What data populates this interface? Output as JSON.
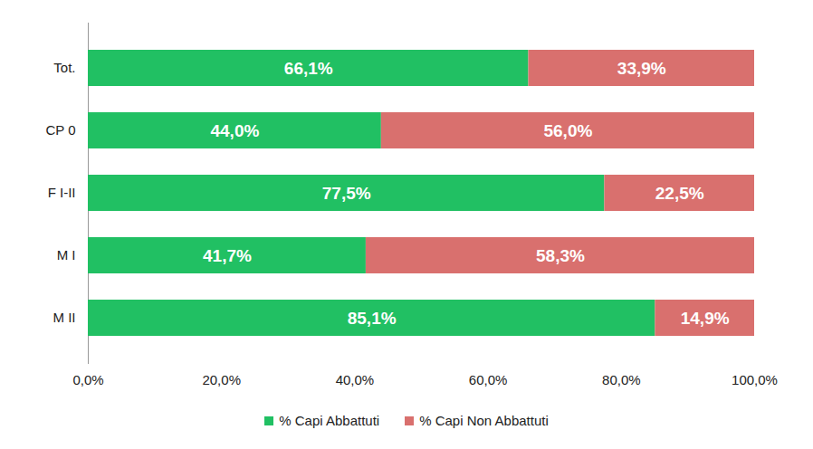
{
  "chart_data": {
    "type": "bar",
    "orientation": "horizontal",
    "stacked": true,
    "data_labels": true,
    "legend": "bottom",
    "grid": false,
    "categories": [
      "Tot.",
      "CP 0",
      "F I-II",
      "M I",
      "M II"
    ],
    "series": [
      {
        "name": "% Capi Abbattuti",
        "color": "#21c063",
        "values": [
          66.1,
          44.0,
          77.5,
          41.7,
          85.1
        ],
        "value_labels": [
          "66,1%",
          "44,0%",
          "77,5%",
          "41,7%",
          "85,1%"
        ]
      },
      {
        "name": "% Capi Non Abbattuti",
        "color": "#d9706e",
        "values": [
          33.9,
          56.0,
          22.5,
          58.3,
          14.9
        ],
        "value_labels": [
          "33,9%",
          "56,0%",
          "22,5%",
          "58,3%",
          "14,9%"
        ]
      }
    ],
    "xlim": [
      0,
      100
    ],
    "xticks": [
      {
        "value": 0,
        "label": "0,0%"
      },
      {
        "value": 20,
        "label": "20,0%"
      },
      {
        "value": 40,
        "label": "40,0%"
      },
      {
        "value": 60,
        "label": "60,0%"
      },
      {
        "value": 80,
        "label": "80,0%"
      },
      {
        "value": 100,
        "label": "100,0%"
      }
    ]
  }
}
